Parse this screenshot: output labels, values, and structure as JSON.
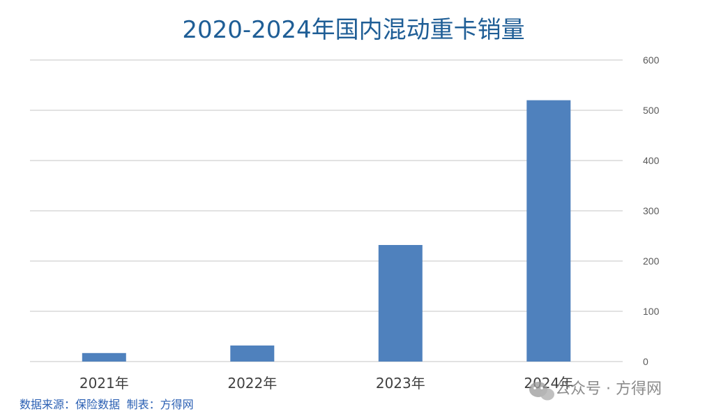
{
  "chart_data": {
    "type": "bar",
    "title": "2020-2024年国内混动重卡销量",
    "categories": [
      "2021年",
      "2022年",
      "2023年",
      "2024年"
    ],
    "values": [
      17,
      32,
      232,
      520
    ],
    "ylim": [
      0,
      600
    ],
    "yticks": [
      0,
      100,
      200,
      300,
      400,
      500,
      600
    ],
    "y_axis_position": "right",
    "grid": true,
    "legend": "none",
    "xlabel": "",
    "ylabel": "",
    "bar_color": "#4f81bd",
    "grid_color": "#d9d9d9"
  },
  "footer": {
    "source_note": "数据来源：保险数据  制表：方得网"
  },
  "watermark": {
    "icon": "wechat-icon",
    "text": "公众号 · 方得网"
  }
}
